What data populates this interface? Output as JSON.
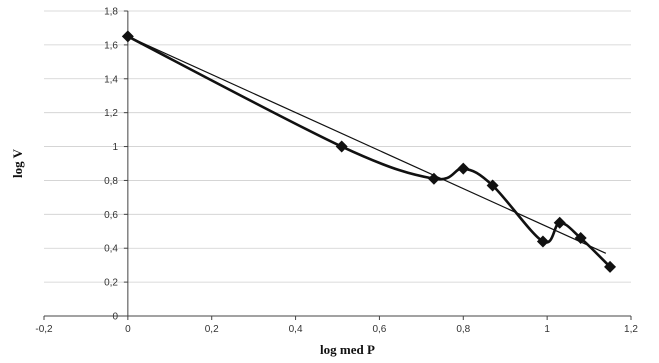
{
  "chart_data": {
    "type": "line",
    "title": "",
    "xlabel": "log med P",
    "ylabel": "log V",
    "xlim": [
      -0.2,
      1.2
    ],
    "ylim": [
      0,
      1.8
    ],
    "x_ticks": [
      "-0,2",
      "0",
      "0,2",
      "0,4",
      "0,6",
      "0,8",
      "1",
      "1,2"
    ],
    "y_ticks": [
      "0",
      "0,2",
      "0,4",
      "0,6",
      "0,8",
      "1",
      "1,2",
      "1,4",
      "1,6",
      "1,8"
    ],
    "grid": "horizontal",
    "series": [
      {
        "style": "smoothed line with diamond markers",
        "x": [
          0.0,
          0.51,
          0.73,
          0.8,
          0.87,
          0.99,
          1.03,
          1.08,
          1.15
        ],
        "y": [
          1.65,
          1.0,
          0.81,
          0.87,
          0.77,
          0.44,
          0.55,
          0.46,
          0.29
        ]
      },
      {
        "style": "linear trend line",
        "x": [
          0.0,
          1.14
        ],
        "y": [
          1.65,
          0.37
        ]
      }
    ]
  }
}
